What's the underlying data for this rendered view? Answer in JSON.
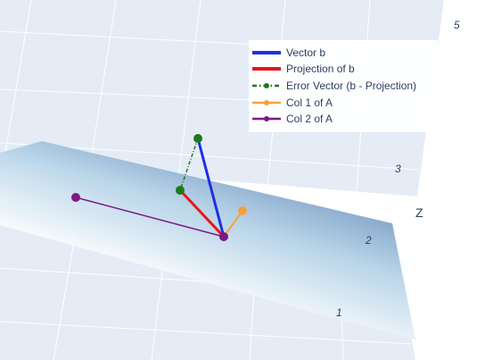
{
  "chart_data": {
    "type": "scatter3d",
    "title": "",
    "axes": {
      "z": {
        "title": "Z",
        "tick_labels": [
          "1",
          "2",
          "3",
          "5"
        ]
      }
    },
    "plane": {
      "name": "",
      "colorscale": [
        "#ffffff",
        "#6f9bc4"
      ],
      "opacity": 0.9
    },
    "series": [
      {
        "name": "Vector b",
        "color": "#1f2ee6",
        "dash": "solid",
        "points": [
          [
            0,
            0,
            0
          ],
          [
            1,
            2,
            2
          ]
        ]
      },
      {
        "name": "Projection of b",
        "color": "#e8151b",
        "dash": "solid",
        "points": [
          [
            0,
            0,
            0
          ],
          [
            1,
            1.5,
            0
          ]
        ]
      },
      {
        "name": "Error Vector (b - Projection)",
        "color": "#1a7a1a",
        "dash": "dashdot",
        "points": [
          [
            1,
            1.5,
            0
          ],
          [
            1,
            2,
            2
          ]
        ]
      },
      {
        "name": "Col 1 of A",
        "color": "#f4a13c",
        "dash": "solid",
        "points": [
          [
            0,
            0,
            0
          ],
          [
            1,
            0,
            0
          ]
        ]
      },
      {
        "name": "Col 2 of A",
        "color": "#7a1a86",
        "dash": "solid",
        "points": [
          [
            0,
            0,
            0
          ],
          [
            1,
            3,
            0
          ]
        ]
      }
    ],
    "legend_position": "top-right",
    "grid": true
  }
}
